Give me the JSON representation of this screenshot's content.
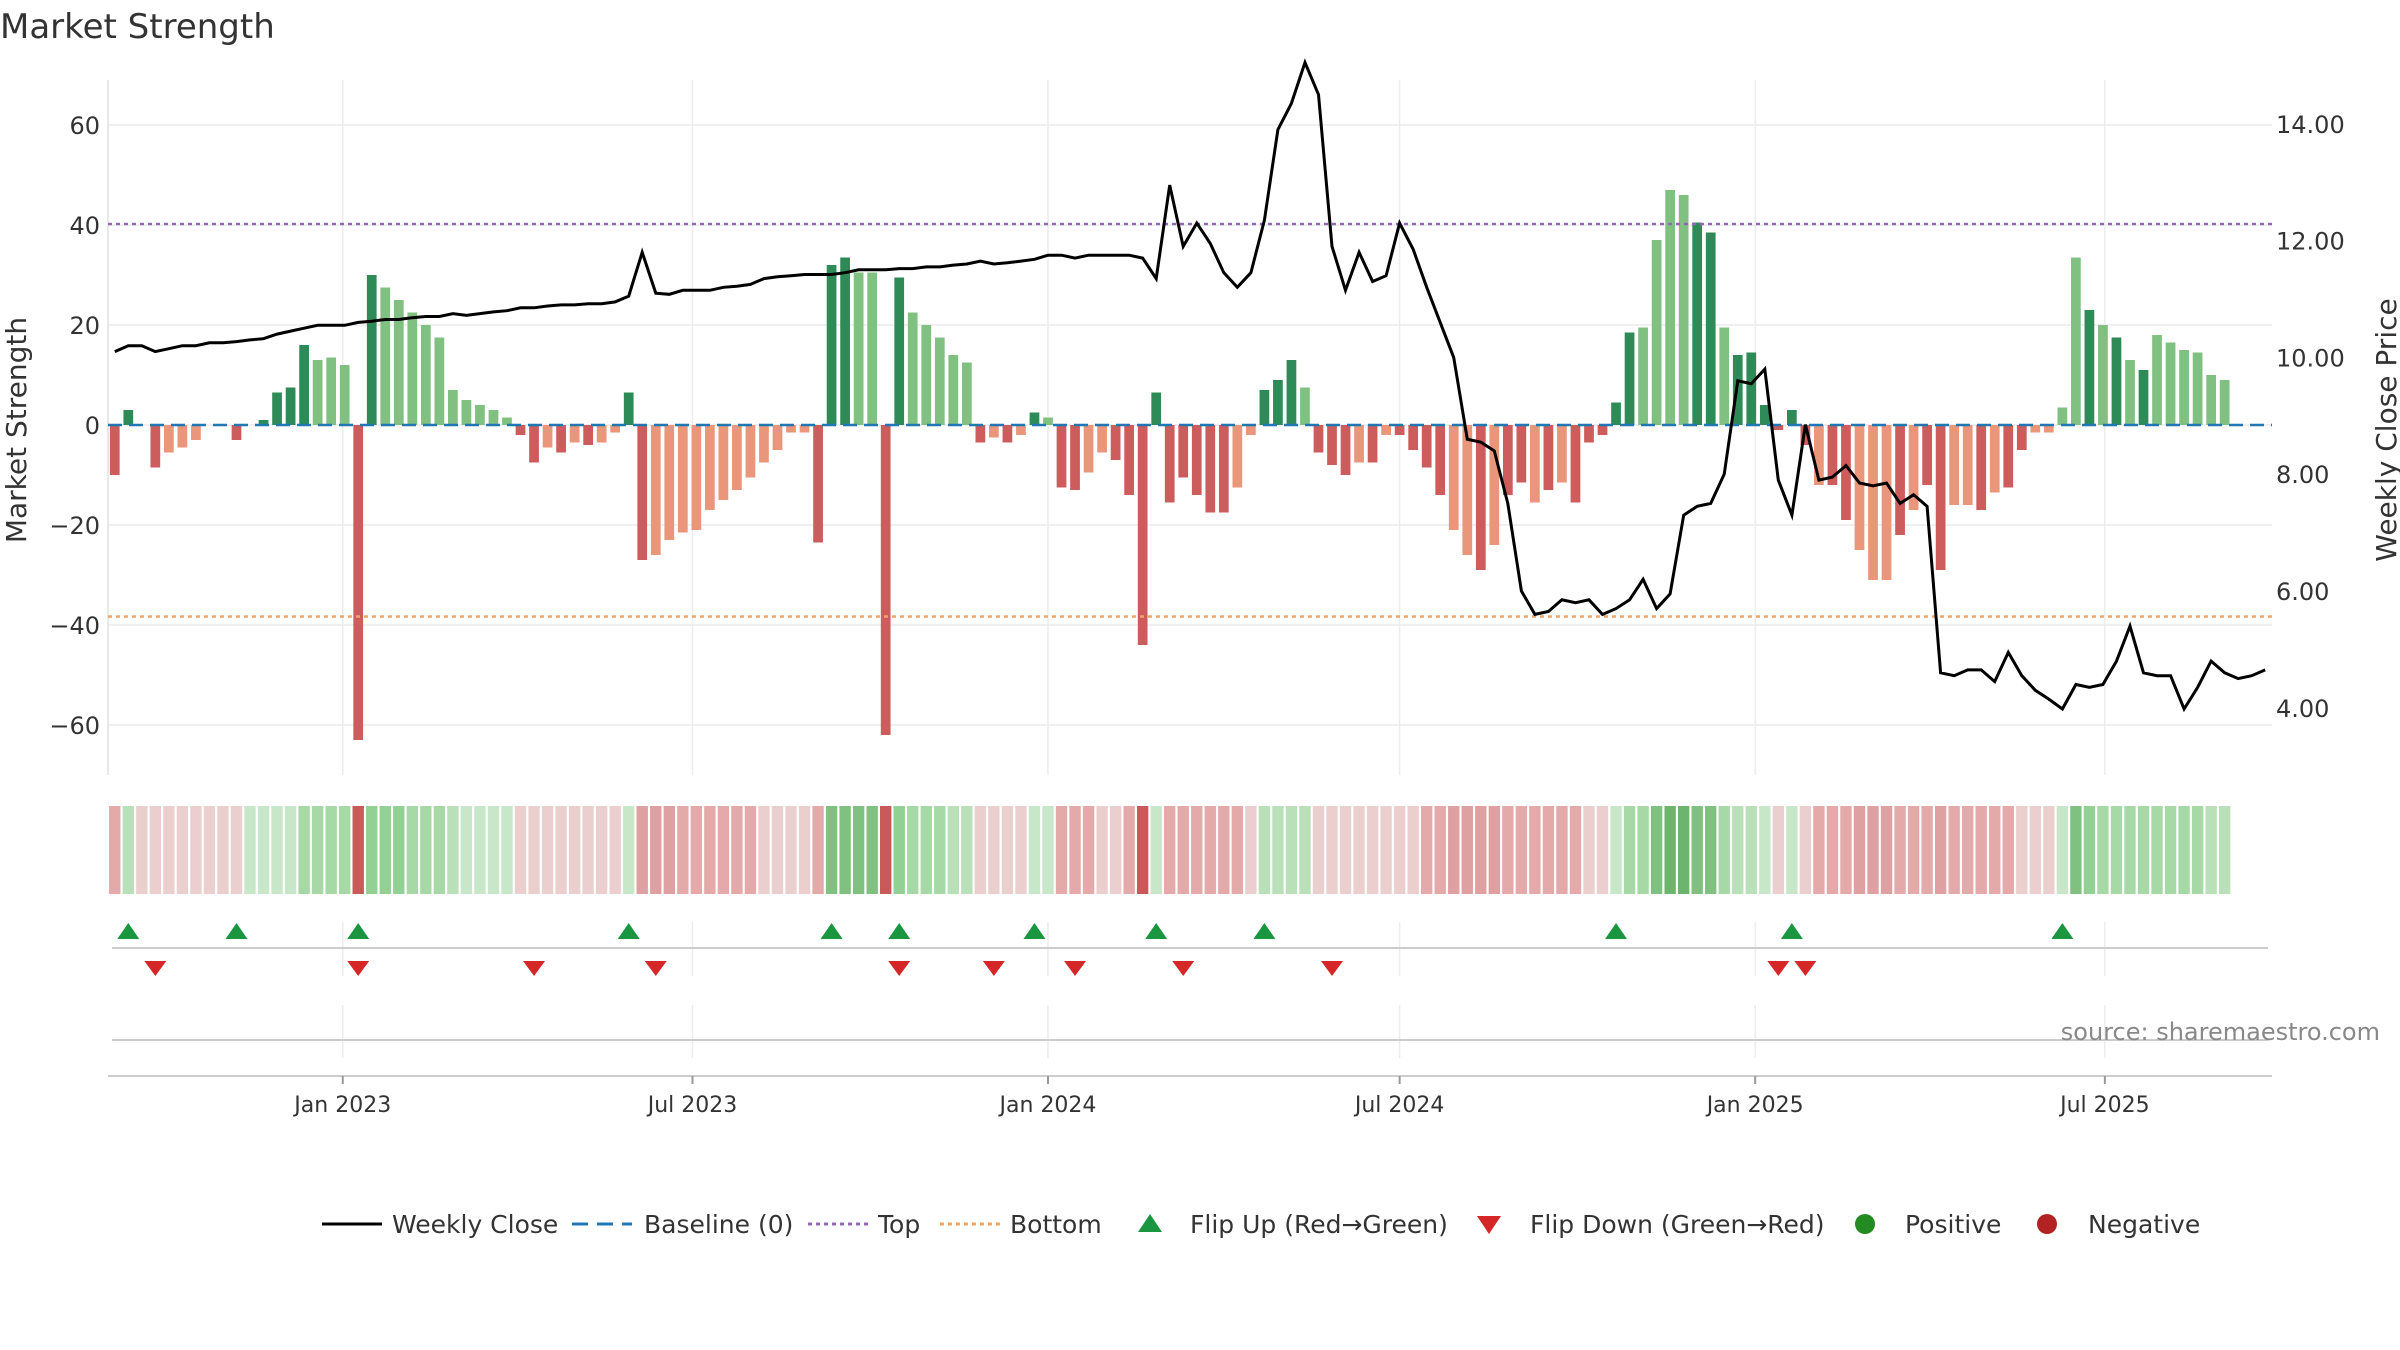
{
  "title": "Market Strength",
  "source": "source: sharemaestro.com",
  "colors": {
    "bar_pos_strong": "#2e8b57",
    "bar_pos_weak": "#80c080",
    "bar_neg_strong": "#cd5c5c",
    "bar_neg_weak": "#e9967a",
    "close_line": "#000000",
    "baseline": "#1f77b4",
    "top_line": "#9467bd",
    "bottom_line": "#f4a460",
    "flip_up": "#1a9641",
    "flip_down": "#d62728",
    "positive_marker": "#228b22",
    "negative_marker": "#b22222"
  },
  "legend": [
    {
      "key": "close",
      "label": "Weekly Close",
      "icon": "solid-line"
    },
    {
      "key": "baseline",
      "label": "Baseline (0)",
      "icon": "dashed-line"
    },
    {
      "key": "top",
      "label": "Top",
      "icon": "dotted-line"
    },
    {
      "key": "bottom",
      "label": "Bottom",
      "icon": "dotted-line"
    },
    {
      "key": "flip_up",
      "label": "Flip Up (Red→Green)",
      "icon": "triangle-up"
    },
    {
      "key": "flip_down",
      "label": "Flip Down (Green→Red)",
      "icon": "triangle-down"
    },
    {
      "key": "positive",
      "label": "Positive",
      "icon": "circle"
    },
    {
      "key": "negative",
      "label": "Negative",
      "icon": "circle"
    }
  ],
  "chart_data": {
    "type": "bar",
    "title": "Market Strength",
    "ylabel": "Market Strength",
    "y2label": "Weekly Close Price",
    "ylim": [
      -70,
      69
    ],
    "y2lim": [
      2.85,
      14.75
    ],
    "yticks": [
      60,
      40,
      20,
      0,
      -20,
      -40,
      -60
    ],
    "ytick_labels": [
      "60",
      "40",
      "20",
      "0",
      "−20",
      "−40",
      "−60"
    ],
    "y2ticks": [
      14,
      12,
      10,
      8,
      6,
      4
    ],
    "y2tick_labels": [
      "14.00",
      "12.00",
      "10.00",
      "8.00",
      "6.00",
      "4.00"
    ],
    "x_start": "2022-09-05",
    "x_end": "2025-09-22",
    "xtick_dates": [
      "2023-01-01",
      "2023-07-01",
      "2024-01-01",
      "2024-07-01",
      "2025-01-01",
      "2025-07-01"
    ],
    "xtick_labels": [
      "Jan 2023",
      "Jul 2023",
      "Jan 2024",
      "Jul 2024",
      "Jan 2025",
      "Jul 2025"
    ],
    "top_level": 40.2,
    "bottom_level": -38.3,
    "grid": true,
    "legend_position": "bottom",
    "strength": [
      -10,
      3,
      0,
      -8.5,
      -5.5,
      -4.5,
      -3,
      0,
      0,
      -3,
      0,
      1,
      6.5,
      7.5,
      16,
      13,
      13.5,
      12,
      -63,
      30,
      27.5,
      25,
      22.5,
      20,
      17.5,
      7,
      5,
      4,
      3,
      1.5,
      -2,
      -7.5,
      -4.5,
      -5.5,
      -3.5,
      -4,
      -3.5,
      -1.5,
      6.5,
      -27,
      -26,
      -23,
      -21.5,
      -21,
      -17,
      -15,
      -13,
      -10.5,
      -7.5,
      -5,
      -1.5,
      -1.5,
      -23.5,
      32,
      33.5,
      30.5,
      30.5,
      -62,
      29.5,
      22.5,
      20,
      17.5,
      14,
      12.5,
      -3.5,
      -2.5,
      -3.5,
      -2,
      2.5,
      1.5,
      -12.5,
      -13,
      -9.5,
      -5.5,
      -7,
      -14,
      -44,
      6.5,
      -15.5,
      -10.5,
      -14,
      -17.5,
      -17.5,
      -12.5,
      -2,
      7,
      9,
      13,
      7.5,
      -5.5,
      -8,
      -10,
      -7.5,
      -7.5,
      -2,
      -2,
      -5,
      -8.5,
      -14,
      -21,
      -26,
      -29,
      -24,
      -14,
      -11.5,
      -15.5,
      -13,
      -11.5,
      -15.5,
      -3.5,
      -2,
      4.5,
      18.5,
      19.5,
      37,
      47,
      46,
      40.5,
      38.5,
      19.5,
      14,
      14.5,
      4,
      -1,
      3,
      -4,
      -12,
      -12,
      -19,
      -25,
      -31,
      -31,
      -22,
      -17,
      -12,
      -29,
      -16,
      -16,
      -17,
      -13.5,
      -12.5,
      -5,
      -1.5,
      -1.5,
      3.5,
      33.5,
      23,
      20,
      17.5,
      13,
      11,
      18,
      16.5,
      15,
      14.5,
      10,
      9
    ],
    "bar_emphasis": [
      1,
      1,
      0,
      1,
      0,
      0,
      0,
      0,
      0,
      1,
      0,
      1,
      1,
      1,
      1,
      0,
      0,
      0,
      1,
      1,
      0,
      0,
      0,
      0,
      0,
      0,
      0,
      0,
      0,
      0,
      1,
      1,
      0,
      1,
      0,
      1,
      0,
      0,
      1,
      1,
      0,
      0,
      0,
      0,
      0,
      0,
      0,
      0,
      0,
      0,
      0,
      0,
      1,
      1,
      1,
      0,
      0,
      1,
      1,
      0,
      0,
      0,
      0,
      0,
      1,
      0,
      1,
      0,
      1,
      0,
      1,
      1,
      0,
      0,
      1,
      1,
      1,
      1,
      1,
      1,
      1,
      1,
      1,
      0,
      0,
      1,
      1,
      1,
      0,
      1,
      1,
      1,
      0,
      1,
      0,
      1,
      1,
      1,
      1,
      0,
      0,
      1,
      0,
      1,
      1,
      0,
      1,
      0,
      1,
      1,
      1,
      1,
      1,
      0,
      0,
      0,
      0,
      1,
      1,
      0,
      1,
      1,
      1,
      1,
      1,
      1,
      0,
      1,
      1,
      0,
      0,
      0,
      1,
      0,
      1,
      1,
      0,
      0,
      1,
      0,
      1,
      1,
      0,
      0,
      0,
      0,
      1,
      0,
      1,
      0,
      1,
      0
    ],
    "close": [
      10.1,
      10.2,
      10.2,
      10.1,
      10.15,
      10.2,
      10.2,
      10.25,
      10.25,
      10.27,
      10.3,
      10.32,
      10.4,
      10.45,
      10.5,
      10.55,
      10.55,
      10.55,
      10.6,
      10.62,
      10.65,
      10.65,
      10.68,
      10.7,
      10.7,
      10.75,
      10.72,
      10.75,
      10.78,
      10.8,
      10.85,
      10.85,
      10.88,
      10.9,
      10.9,
      10.92,
      10.92,
      10.95,
      11.05,
      11.8,
      11.1,
      11.08,
      11.15,
      11.15,
      11.15,
      11.2,
      11.22,
      11.25,
      11.35,
      11.38,
      11.4,
      11.42,
      11.42,
      11.42,
      11.45,
      11.5,
      11.5,
      11.5,
      11.52,
      11.52,
      11.55,
      11.55,
      11.58,
      11.6,
      11.65,
      11.6,
      11.62,
      11.65,
      11.68,
      11.75,
      11.75,
      11.7,
      11.75,
      11.75,
      11.75,
      11.75,
      11.7,
      11.35,
      12.95,
      11.9,
      12.3,
      11.95,
      11.45,
      11.2,
      11.45,
      12.35,
      13.9,
      14.35,
      15.05,
      14.5,
      11.9,
      11.15,
      11.8,
      11.3,
      11.4,
      12.3,
      11.85,
      11.2,
      10.6,
      10.0,
      8.6,
      8.55,
      8.4,
      7.5,
      6.0,
      5.6,
      5.65,
      5.85,
      5.8,
      5.85,
      5.6,
      5.7,
      5.85,
      6.2,
      5.7,
      5.95,
      7.3,
      7.45,
      7.5,
      8.0,
      9.6,
      9.55,
      9.8,
      7.9,
      7.3,
      8.85,
      7.9,
      7.95,
      8.15,
      7.85,
      7.8,
      7.85,
      7.5,
      7.65,
      7.45,
      4.6,
      4.55,
      4.65,
      4.65,
      4.45,
      4.95,
      4.55,
      4.3,
      4.15,
      3.98,
      4.4,
      4.35,
      4.4,
      4.8,
      5.4,
      4.6,
      4.55,
      4.55,
      3.98,
      4.35,
      4.8,
      4.6,
      4.5,
      4.55,
      4.65
    ]
  },
  "strip": {
    "colors": [
      "#e4a9a9",
      "#b9e0b9",
      "#ebcfcf",
      "#ebcfcf",
      "#ebcfcf",
      "#ebcfcf",
      "#ebcfcf",
      "#ebcfcf",
      "#ebcfcf",
      "#ebcfcf",
      "#c8e7c8",
      "#c8e7c8",
      "#c8e7c8",
      "#c8e7c8",
      "#a6d9a6",
      "#a6d9a6",
      "#a6d9a6",
      "#a6d9a6",
      "#c85a5a",
      "#93d093",
      "#93d093",
      "#93d093",
      "#a6d9a6",
      "#a6d9a6",
      "#a6d9a6",
      "#b9e0b9",
      "#c8e7c8",
      "#c8e7c8",
      "#c8e7c8",
      "#c8e7c8",
      "#ebcfcf",
      "#ebcfcf",
      "#ebcfcf",
      "#ebcfcf",
      "#ebcfcf",
      "#ebcfcf",
      "#ebcfcf",
      "#ebcfcf",
      "#c8e7c8",
      "#dea0a0",
      "#dea0a0",
      "#dea0a0",
      "#e4a9a9",
      "#e4a9a9",
      "#e4a9a9",
      "#e4a9a9",
      "#e4a9a9",
      "#e4a9a9",
      "#ebcfcf",
      "#ebcfcf",
      "#ebcfcf",
      "#ebcfcf",
      "#e4a9a9",
      "#80c080",
      "#80c080",
      "#80c080",
      "#80c080",
      "#c85a5a",
      "#93d093",
      "#a6d9a6",
      "#a6d9a6",
      "#a6d9a6",
      "#b9e0b9",
      "#b9e0b9",
      "#ebcfcf",
      "#ebcfcf",
      "#ebcfcf",
      "#ebcfcf",
      "#c8e7c8",
      "#c8e7c8",
      "#e4a9a9",
      "#e4a9a9",
      "#e4a9a9",
      "#ebcfcf",
      "#ebcfcf",
      "#e4a9a9",
      "#c85a5a",
      "#c8e7c8",
      "#e4a9a9",
      "#e4a9a9",
      "#e4a9a9",
      "#e4a9a9",
      "#e4a9a9",
      "#e4a9a9",
      "#ebcfcf",
      "#b9e0b9",
      "#b9e0b9",
      "#b9e0b9",
      "#b9e0b9",
      "#ebcfcf",
      "#ebcfcf",
      "#ebcfcf",
      "#ebcfcf",
      "#ebcfcf",
      "#ebcfcf",
      "#ebcfcf",
      "#ebcfcf",
      "#e4a9a9",
      "#e4a9a9",
      "#dea0a0",
      "#dea0a0",
      "#dea0a0",
      "#dea0a0",
      "#e4a9a9",
      "#e4a9a9",
      "#e4a9a9",
      "#e4a9a9",
      "#e4a9a9",
      "#e4a9a9",
      "#ebcfcf",
      "#ebcfcf",
      "#c8e7c8",
      "#a6d9a6",
      "#a6d9a6",
      "#80c080",
      "#6db56d",
      "#6db56d",
      "#80c080",
      "#80c080",
      "#a6d9a6",
      "#b9e0b9",
      "#b9e0b9",
      "#c8e7c8",
      "#ebcfcf",
      "#c8e7c8",
      "#ebcfcf",
      "#e4a9a9",
      "#e4a9a9",
      "#e4a9a9",
      "#dea0a0",
      "#dea0a0",
      "#dea0a0",
      "#e4a9a9",
      "#e4a9a9",
      "#e4a9a9",
      "#dea0a0",
      "#e4a9a9",
      "#e4a9a9",
      "#e4a9a9",
      "#e4a9a9",
      "#e4a9a9",
      "#ebcfcf",
      "#ebcfcf",
      "#ebcfcf",
      "#c8e7c8",
      "#80c080",
      "#93d093",
      "#a6d9a6",
      "#a6d9a6",
      "#a6d9a6",
      "#a6d9a6",
      "#a6d9a6",
      "#a6d9a6",
      "#a6d9a6",
      "#a6d9a6",
      "#b9e0b9",
      "#b9e0b9"
    ]
  },
  "flips": {
    "up": [
      1,
      9,
      18,
      38,
      53,
      58,
      68,
      77,
      85,
      111,
      124,
      144
    ],
    "down": [
      3,
      18,
      31,
      40,
      58,
      65,
      71,
      79,
      90,
      123,
      125
    ]
  }
}
